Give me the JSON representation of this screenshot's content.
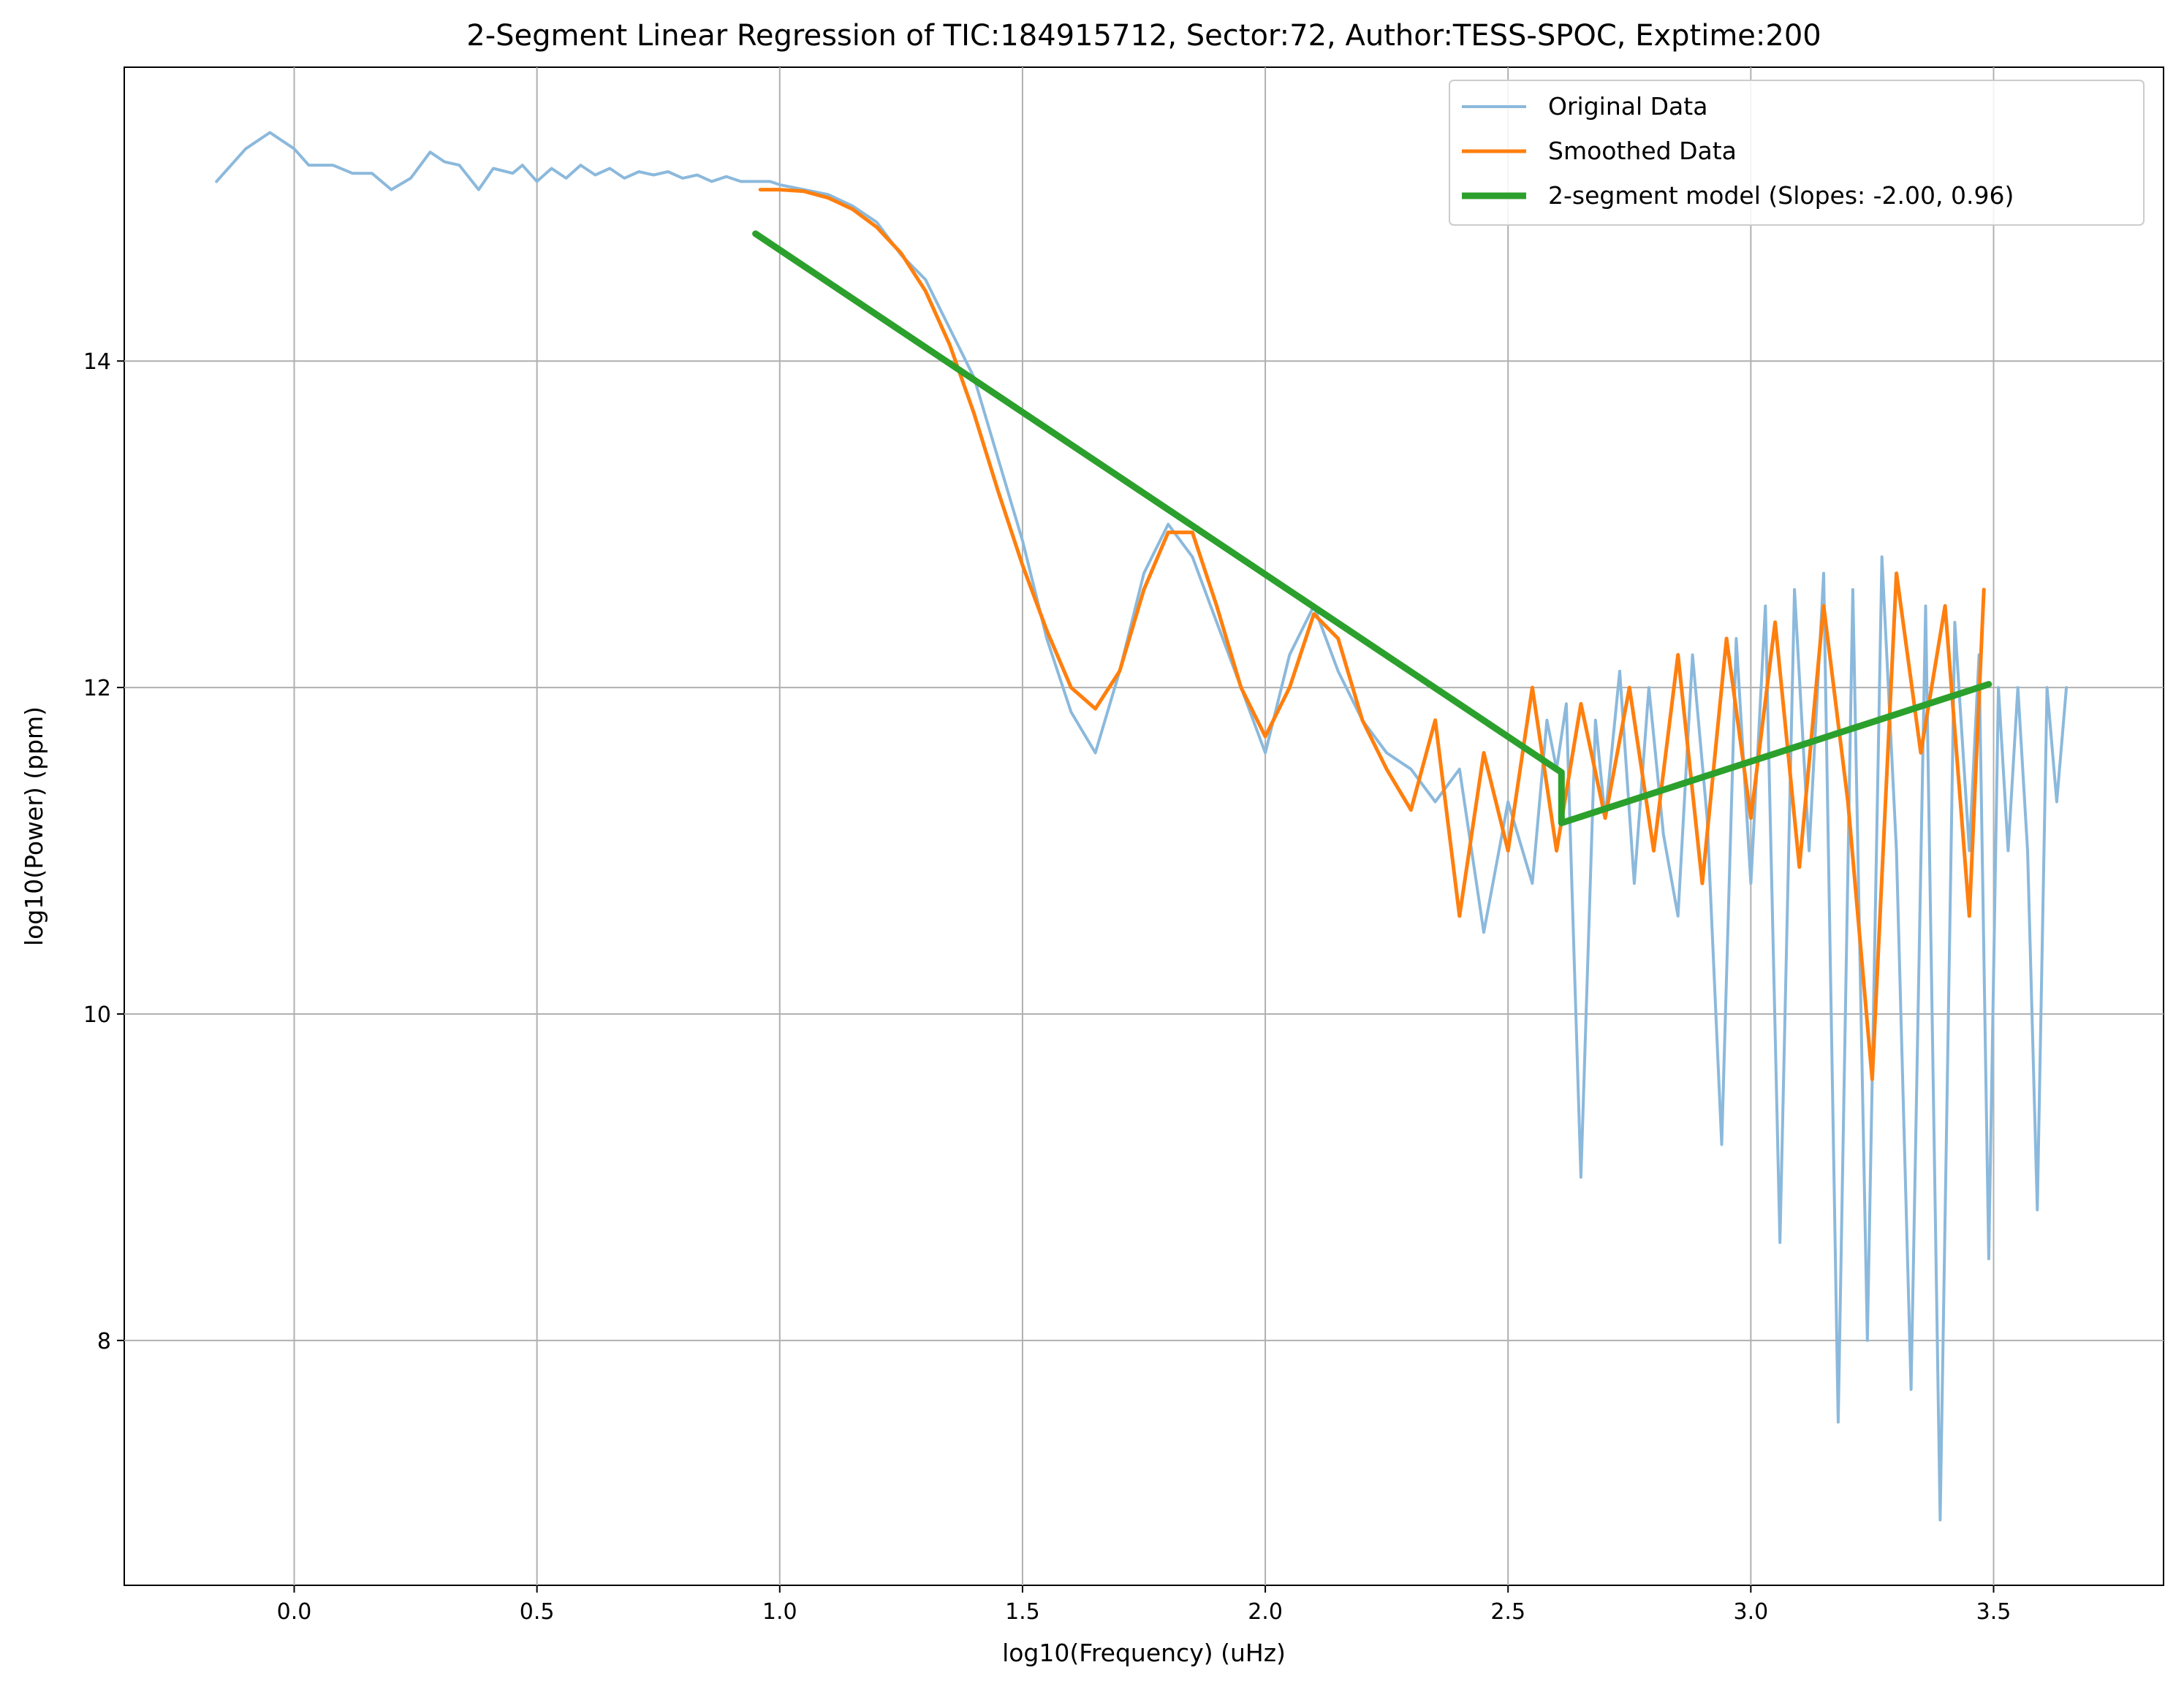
{
  "chart_data": {
    "type": "line",
    "title": "2-Segment Linear Regression of TIC:184915712, Sector:72, Author:TESS-SPOC, Exptime:200",
    "xlabel": "log10(Frequency) (uHz)",
    "ylabel": "log10(Power) (ppm)",
    "xlim": [
      -0.35,
      3.85
    ],
    "ylim": [
      6.5,
      15.8
    ],
    "xticks": [
      0.0,
      0.5,
      1.0,
      1.5,
      2.0,
      2.5,
      3.0,
      3.5
    ],
    "xtick_labels": [
      "0.0",
      "0.5",
      "1.0",
      "1.5",
      "2.0",
      "2.5",
      "3.0",
      "3.5"
    ],
    "yticks": [
      8,
      10,
      12,
      14
    ],
    "ytick_labels": [
      "8",
      "10",
      "12",
      "14"
    ],
    "grid": true,
    "legend_position": "top-right",
    "series": [
      {
        "name": "Original Data",
        "color": "#8bb9dc",
        "x": [
          -0.16,
          -0.1,
          -0.05,
          0.0,
          0.03,
          0.08,
          0.12,
          0.16,
          0.2,
          0.24,
          0.28,
          0.31,
          0.34,
          0.38,
          0.41,
          0.45,
          0.47,
          0.5,
          0.53,
          0.56,
          0.59,
          0.62,
          0.65,
          0.68,
          0.71,
          0.74,
          0.77,
          0.8,
          0.83,
          0.86,
          0.89,
          0.92,
          0.95,
          0.98,
          1.0,
          1.05,
          1.1,
          1.15,
          1.2,
          1.25,
          1.3,
          1.35,
          1.4,
          1.45,
          1.5,
          1.55,
          1.6,
          1.65,
          1.7,
          1.75,
          1.8,
          1.85,
          1.9,
          1.95,
          2.0,
          2.05,
          2.1,
          2.15,
          2.2,
          2.25,
          2.3,
          2.35,
          2.4,
          2.45,
          2.5,
          2.55,
          2.58,
          2.6,
          2.62,
          2.65,
          2.68,
          2.7,
          2.73,
          2.76,
          2.79,
          2.82,
          2.85,
          2.88,
          2.91,
          2.94,
          2.97,
          3.0,
          3.03,
          3.06,
          3.09,
          3.12,
          3.15,
          3.18,
          3.21,
          3.24,
          3.27,
          3.3,
          3.33,
          3.36,
          3.39,
          3.42,
          3.45,
          3.47,
          3.49,
          3.51,
          3.53,
          3.55,
          3.57,
          3.59,
          3.61,
          3.63,
          3.65
        ],
        "y": [
          15.1,
          15.3,
          15.4,
          15.3,
          15.2,
          15.2,
          15.15,
          15.15,
          15.05,
          15.12,
          15.28,
          15.22,
          15.2,
          15.05,
          15.18,
          15.15,
          15.2,
          15.1,
          15.18,
          15.12,
          15.2,
          15.14,
          15.18,
          15.12,
          15.16,
          15.14,
          15.16,
          15.12,
          15.14,
          15.1,
          15.13,
          15.1,
          15.1,
          15.1,
          15.08,
          15.05,
          15.02,
          14.95,
          14.85,
          14.65,
          14.5,
          14.2,
          13.9,
          13.4,
          12.9,
          12.3,
          11.85,
          11.6,
          12.1,
          12.7,
          13.0,
          12.8,
          12.4,
          12.0,
          11.6,
          12.2,
          12.5,
          12.1,
          11.8,
          11.6,
          11.5,
          11.3,
          11.5,
          10.5,
          11.3,
          10.8,
          11.8,
          11.5,
          11.9,
          9.0,
          11.8,
          11.2,
          12.1,
          10.8,
          12.0,
          11.1,
          10.6,
          12.2,
          11.2,
          9.2,
          12.3,
          10.8,
          12.5,
          8.6,
          12.6,
          11.0,
          12.7,
          7.5,
          12.6,
          8.0,
          12.8,
          11.0,
          7.7,
          12.5,
          6.9,
          12.4,
          11.0,
          12.2,
          8.5,
          12.0,
          11.0,
          12.0,
          11.0,
          8.8,
          12.0,
          11.3,
          12.0
        ]
      },
      {
        "name": "Smoothed Data",
        "color": "#ff7f0e",
        "x": [
          0.96,
          1.0,
          1.05,
          1.1,
          1.15,
          1.2,
          1.25,
          1.3,
          1.35,
          1.4,
          1.45,
          1.5,
          1.55,
          1.6,
          1.65,
          1.7,
          1.75,
          1.8,
          1.85,
          1.9,
          1.95,
          2.0,
          2.05,
          2.1,
          2.15,
          2.2,
          2.25,
          2.3,
          2.35,
          2.4,
          2.45,
          2.5,
          2.55,
          2.6,
          2.65,
          2.7,
          2.75,
          2.8,
          2.85,
          2.9,
          2.95,
          3.0,
          3.05,
          3.1,
          3.15,
          3.2,
          3.25,
          3.3,
          3.35,
          3.4,
          3.45,
          3.48
        ],
        "y": [
          15.05,
          15.05,
          15.04,
          15.0,
          14.93,
          14.82,
          14.66,
          14.43,
          14.1,
          13.68,
          13.2,
          12.75,
          12.35,
          12.0,
          11.87,
          12.1,
          12.6,
          12.95,
          12.95,
          12.5,
          12.0,
          11.7,
          12.0,
          12.45,
          12.3,
          11.8,
          11.5,
          11.25,
          11.8,
          10.6,
          11.6,
          11.0,
          12.0,
          11.0,
          11.9,
          11.2,
          12.0,
          11.0,
          12.2,
          10.8,
          12.3,
          11.2,
          12.4,
          10.9,
          12.5,
          11.3,
          9.6,
          12.7,
          11.6,
          12.5,
          10.6,
          12.6
        ]
      },
      {
        "name": "2-segment model (Slopes: -2.00, 0.96)",
        "color": "#2ca02c",
        "x": [
          0.95,
          2.61,
          2.61,
          3.49
        ],
        "y": [
          14.78,
          11.48,
          11.17,
          12.02
        ]
      }
    ]
  }
}
